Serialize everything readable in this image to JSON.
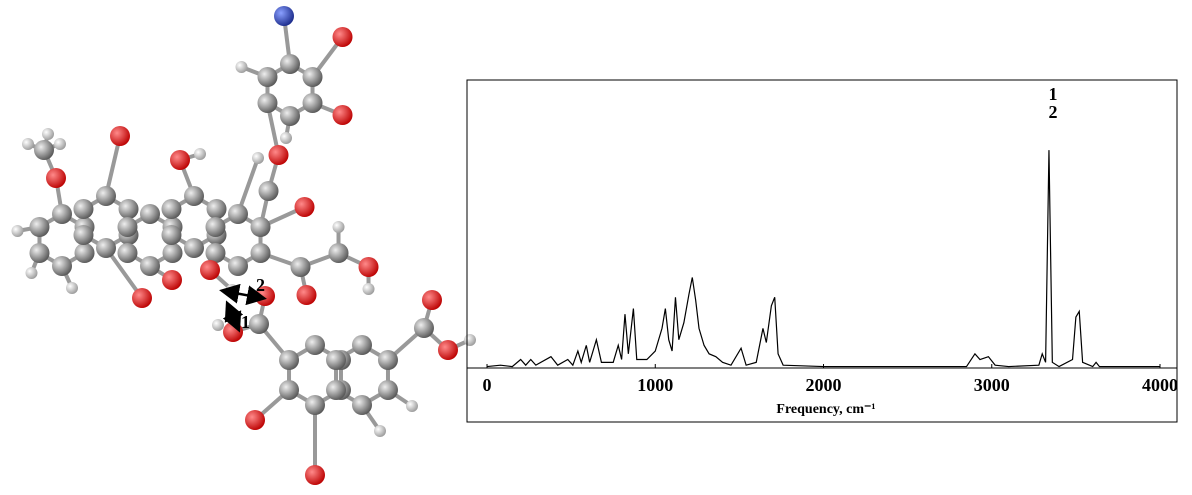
{
  "molecule": {
    "labels": [
      "1",
      "2"
    ]
  },
  "chart_data": {
    "type": "line",
    "x_label": "Frequency, cm⁻¹",
    "annotations": [
      "1",
      "2"
    ],
    "annotation_x": 3340,
    "color": "#000000",
    "xlim": [
      -119,
      4101
    ],
    "xticks": [
      0,
      1000,
      2000,
      3000,
      4000
    ],
    "ylim": [
      0,
      100
    ],
    "x": [
      0,
      80,
      150,
      200,
      230,
      260,
      290,
      380,
      420,
      480,
      510,
      540,
      560,
      590,
      610,
      650,
      680,
      750,
      780,
      800,
      820,
      840,
      870,
      890,
      950,
      1000,
      1040,
      1060,
      1080,
      1100,
      1120,
      1140,
      1170,
      1200,
      1220,
      1240,
      1260,
      1290,
      1320,
      1360,
      1400,
      1450,
      1510,
      1540,
      1600,
      1640,
      1660,
      1690,
      1710,
      1730,
      1760,
      2000,
      2500,
      2850,
      2900,
      2930,
      2980,
      3020,
      3100,
      3280,
      3300,
      3320,
      3340,
      3360,
      3400,
      3480,
      3500,
      3520,
      3540,
      3600,
      3620,
      3640,
      4000
    ],
    "values": [
      0.5,
      1,
      0.5,
      3,
      1,
      3,
      1,
      4,
      1,
      3,
      1,
      6,
      2,
      8,
      2,
      10,
      2,
      2,
      8,
      3,
      19,
      5,
      21,
      3,
      3,
      6,
      14,
      21,
      10,
      6,
      25,
      10,
      16,
      26,
      32,
      24,
      14,
      8,
      5,
      4,
      2,
      1,
      7,
      1,
      2,
      14,
      9,
      22,
      25,
      5,
      1,
      0.5,
      0.5,
      0.5,
      5,
      3,
      4,
      1,
      0.5,
      1,
      5,
      2,
      77,
      2,
      0.5,
      3,
      18,
      20,
      2,
      0.5,
      2,
      0.5,
      0.5
    ]
  }
}
